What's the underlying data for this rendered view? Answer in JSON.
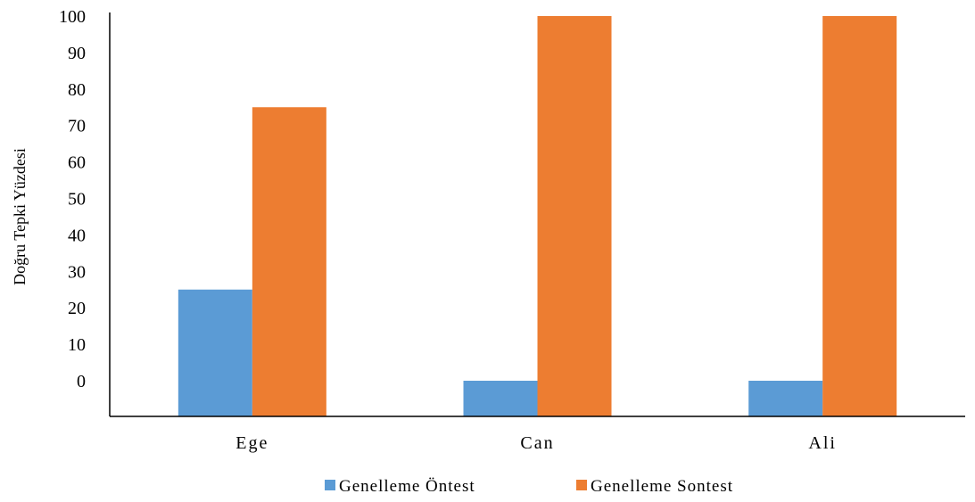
{
  "chart_data": {
    "type": "bar",
    "title": "",
    "xlabel": "",
    "ylabel": "Doğru Tepki Yüzdesi",
    "categories": [
      "Ege",
      "Can",
      "Ali"
    ],
    "series": [
      {
        "name": "Genelleme Öntest",
        "values": [
          25,
          0,
          0
        ],
        "color": "#5b9bd5"
      },
      {
        "name": "Genelleme Sontest",
        "values": [
          75,
          100,
          100
        ],
        "color": "#ed7d31"
      }
    ],
    "ylim": [
      0,
      100
    ],
    "yticks": [
      0,
      10,
      20,
      30,
      40,
      50,
      60,
      70,
      80,
      90,
      100
    ],
    "grid": false,
    "legend_position": "bottom"
  }
}
